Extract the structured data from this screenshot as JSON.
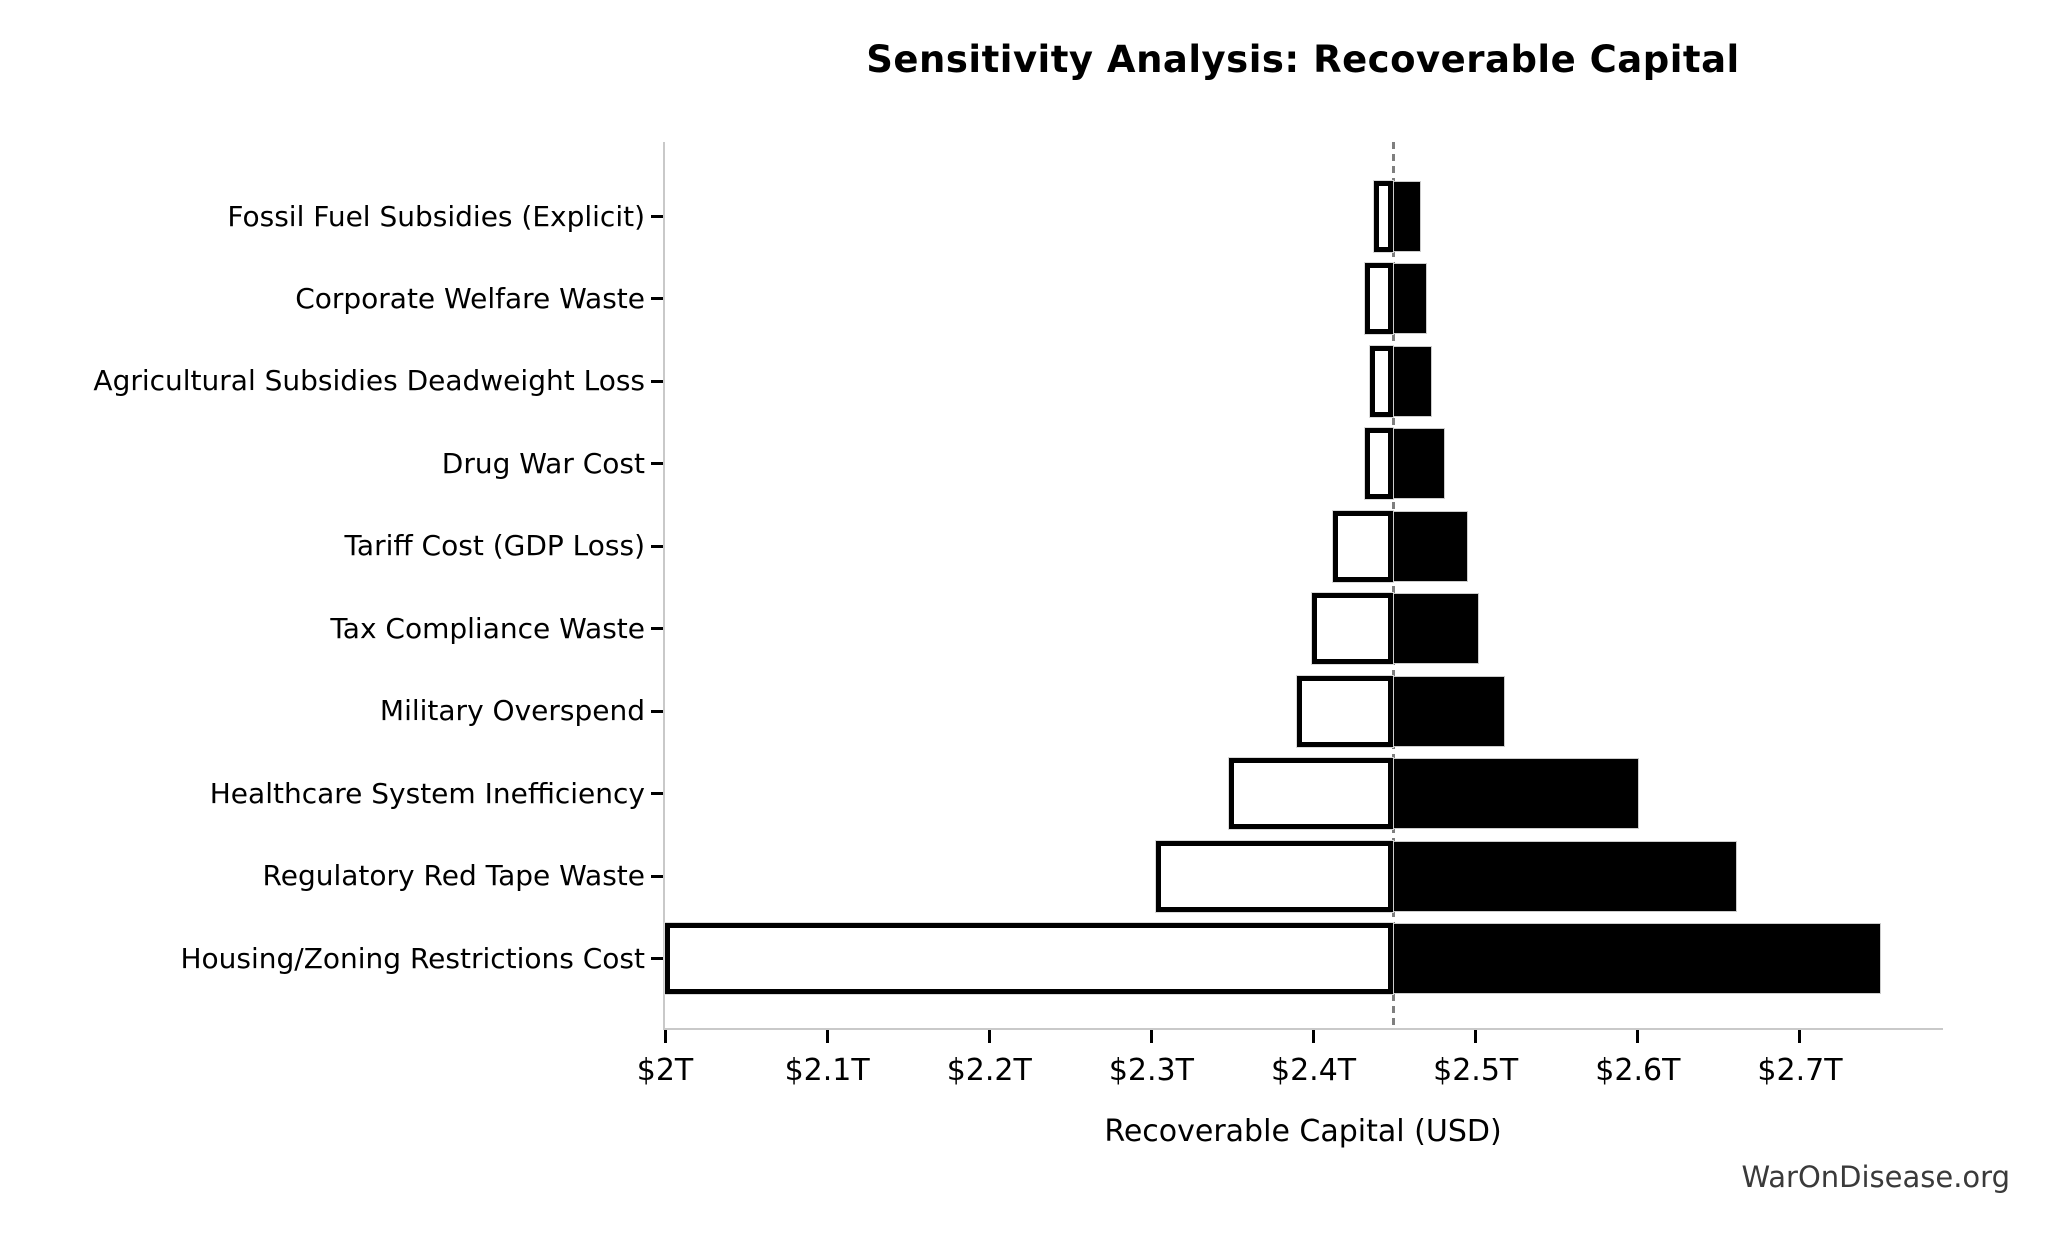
{
  "title": "Sensitivity Analysis: Recoverable Capital",
  "watermark": "WarOnDisease.org",
  "chart_data": {
    "type": "bar",
    "subtype": "tornado-sensitivity",
    "orientation": "horizontal",
    "title": "Sensitivity Analysis: Recoverable Capital",
    "xlabel": "Recoverable Capital (USD)",
    "unit": "trillions USD",
    "base_value": 2.449,
    "xlim": [
      2.0,
      2.788
    ],
    "grid": false,
    "legend_position": "none",
    "x_ticks": [
      {
        "value": 2.0,
        "label": "$2T"
      },
      {
        "value": 2.1,
        "label": "$2.1T"
      },
      {
        "value": 2.2,
        "label": "$2.2T"
      },
      {
        "value": 2.3,
        "label": "$2.3T"
      },
      {
        "value": 2.4,
        "label": "$2.4T"
      },
      {
        "value": 2.5,
        "label": "$2.5T"
      },
      {
        "value": 2.6,
        "label": "$2.6T"
      },
      {
        "value": 2.7,
        "label": "$2.7T"
      }
    ],
    "categories": [
      {
        "label": "Fossil Fuel Subsidies (Explicit)",
        "low": 2.437,
        "high": 2.466
      },
      {
        "label": "Corporate Welfare Waste",
        "low": 2.432,
        "high": 2.47
      },
      {
        "label": "Agricultural Subsidies Deadweight Loss",
        "low": 2.435,
        "high": 2.473
      },
      {
        "label": "Drug War Cost",
        "low": 2.432,
        "high": 2.481
      },
      {
        "label": "Tariff Cost (GDP Loss)",
        "low": 2.412,
        "high": 2.495
      },
      {
        "label": "Tax Compliance Waste",
        "low": 2.399,
        "high": 2.502
      },
      {
        "label": "Military Overspend",
        "low": 2.39,
        "high": 2.518
      },
      {
        "label": "Healthcare System Inefficiency",
        "low": 2.348,
        "high": 2.601
      },
      {
        "label": "Regulatory Red Tape Waste",
        "low": 2.303,
        "high": 2.661
      },
      {
        "label": "Housing/Zoning Restrictions Cost",
        "low": 2.0,
        "high": 2.75
      }
    ],
    "series": [
      {
        "name": "low-case (white segment)",
        "fill": "#ffffff"
      },
      {
        "name": "high-case (black segment)",
        "fill": "#000000"
      }
    ],
    "colors": {
      "bar_low_fill": "#ffffff",
      "bar_high_fill": "#000000",
      "bar_edge": "#000000",
      "base_line": "#7f7f7f",
      "spine": "#c9c9c9",
      "tick": "#000000",
      "text": "#000000",
      "watermark": "#3a3a3a"
    }
  }
}
